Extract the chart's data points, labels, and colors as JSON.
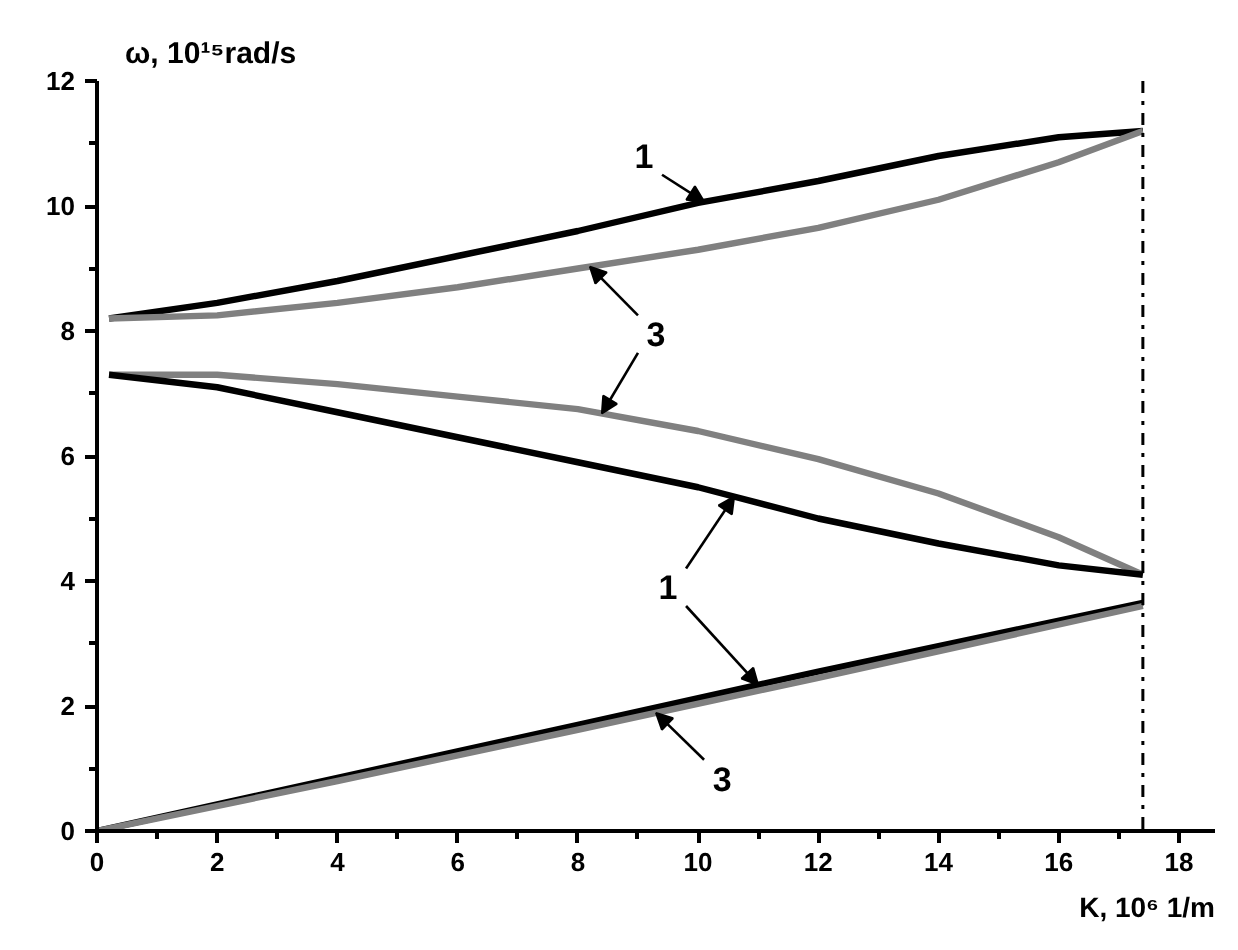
{
  "chart_data": {
    "type": "line",
    "xlabel": "K, 10⁶ 1/m",
    "ylabel": "ω, 10¹⁵rad/s",
    "xlim": [
      0,
      18.6
    ],
    "ylim": [
      0,
      12
    ],
    "xticks": [
      0,
      {
        "value": 1,
        "label": null
      },
      2,
      {
        "value": 3,
        "label": null
      },
      4,
      {
        "value": 5,
        "label": null
      },
      6,
      {
        "value": 7,
        "label": null
      },
      8,
      {
        "value": 9,
        "label": null
      },
      10,
      {
        "value": 11,
        "label": null
      },
      12,
      {
        "value": 13,
        "label": null
      },
      14,
      {
        "value": 15,
        "label": null
      },
      16,
      {
        "value": 17,
        "label": null
      },
      18
    ],
    "yticks": [
      0,
      {
        "value": 1,
        "label": null
      },
      2,
      {
        "value": 3,
        "label": null
      },
      4,
      {
        "value": 5,
        "label": null
      },
      6,
      {
        "value": 7,
        "label": null
      },
      8,
      {
        "value": 9,
        "label": null
      },
      10,
      {
        "value": 11,
        "label": null
      },
      12
    ],
    "grid": false,
    "marker": "none",
    "line_style": "solid",
    "series": [
      {
        "color": "#000000",
        "x": [
          0.2,
          2,
          4,
          6,
          8,
          10,
          12,
          14,
          16,
          17.4
        ],
        "values": [
          8.2,
          8.45,
          8.8,
          9.2,
          9.6,
          10.05,
          10.4,
          10.8,
          11.1,
          11.2
        ]
      },
      {
        "color": "#808080",
        "x": [
          0.2,
          2,
          4,
          6,
          8,
          10,
          12,
          14,
          16,
          17.4
        ],
        "values": [
          8.2,
          8.25,
          8.45,
          8.7,
          9.0,
          9.3,
          9.65,
          10.1,
          10.7,
          11.2
        ]
      },
      {
        "color": "#808080",
        "x": [
          0.2,
          2,
          4,
          6,
          8,
          10,
          12,
          14,
          16,
          17.4
        ],
        "values": [
          7.3,
          7.3,
          7.15,
          6.95,
          6.75,
          6.4,
          5.95,
          5.4,
          4.7,
          4.1
        ]
      },
      {
        "color": "#000000",
        "x": [
          0.2,
          2,
          4,
          6,
          8,
          10,
          12,
          14,
          16,
          17.4
        ],
        "values": [
          7.3,
          7.1,
          6.7,
          6.3,
          5.9,
          5.5,
          5.0,
          4.6,
          4.25,
          4.1
        ]
      },
      {
        "color": "#000000",
        "x": [
          0,
          4,
          8,
          12,
          17.4
        ],
        "values": [
          0,
          0.85,
          1.7,
          2.55,
          3.65
        ]
      },
      {
        "color": "#808080",
        "x": [
          0,
          4,
          8,
          12,
          17.4
        ],
        "values": [
          0,
          0.8,
          1.62,
          2.45,
          3.6
        ]
      }
    ],
    "ref_lines": [
      {
        "axis": "x",
        "value": 17.4,
        "color": "#000000",
        "line_style": "dashdot"
      }
    ],
    "annotations": [
      {
        "text": "1",
        "x": 10.1,
        "y": 10.07
      },
      {
        "text": "3",
        "x": 8.2,
        "y": 9.03
      },
      {
        "text": "1",
        "x": 10.6,
        "y": 5.35
      },
      {
        "text": "3",
        "x": 9.3,
        "y": 1.89
      }
    ]
  }
}
